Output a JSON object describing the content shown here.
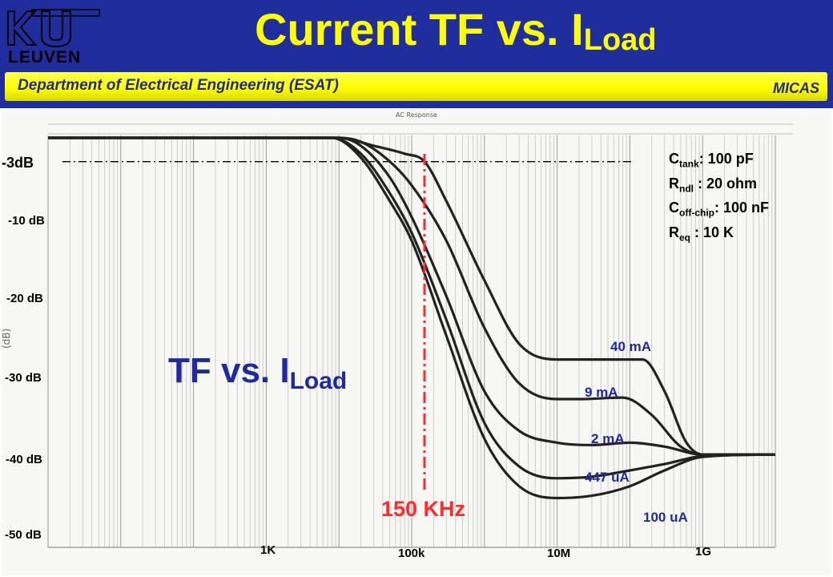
{
  "header": {
    "logo_text": "LEUVEN",
    "title_main": "Current TF vs. I",
    "title_sub": "Load",
    "department": "Department of Electrical Engineering (ESAT)",
    "group": "MICAS"
  },
  "annotations": {
    "tf_main": "TF vs. I",
    "tf_sub": "Load",
    "freq_marker": "150 KHz",
    "params": [
      {
        "name": "C",
        "sub": "tank",
        "value": ": 100 pF"
      },
      {
        "name": "R",
        "sub": "ndl",
        "value": " : 20 ohm"
      },
      {
        "name": "C",
        "sub": "off-chip",
        "value": ": 100 nF"
      },
      {
        "name": "R",
        "sub": "eq",
        "value": " : 10 K"
      }
    ]
  },
  "colors": {
    "header_bg": "#1f2e9c",
    "title": "#ffff00",
    "band": "#ffff00",
    "curve_label": "#1e2aa0",
    "marker": "#ff2a2a",
    "curve": "#222222"
  },
  "chart_data": {
    "type": "line",
    "x_scale": "log",
    "xlim": [
      1,
      10000000000
    ],
    "ylim": [
      -52,
      2
    ],
    "ylabel": "(dB)",
    "y_tick_labels": [
      {
        "label": "-3dB",
        "value": -3
      },
      {
        "label": "-10 dB",
        "value": -10
      },
      {
        "label": "-20 dB",
        "value": -20
      },
      {
        "label": "-30 dB",
        "value": -30
      },
      {
        "label": "-40 dB",
        "value": -40
      },
      {
        "label": "-50 dB",
        "value": -50
      }
    ],
    "x_tick_labels": [
      {
        "label": "1K",
        "value": 1000
      },
      {
        "label": "100k",
        "value": 100000
      },
      {
        "label": "10M",
        "value": 10000000
      },
      {
        "label": "1G",
        "value": 1000000000
      }
    ],
    "reference_line": {
      "value": -3
    },
    "marker_line": {
      "value": 150000
    },
    "series": [
      {
        "name": "40 mA",
        "points": [
          [
            1,
            0
          ],
          [
            10000,
            0
          ],
          [
            30000,
            -1
          ],
          [
            80000,
            -2
          ],
          [
            150000,
            -3
          ],
          [
            300000,
            -8
          ],
          [
            1000000,
            -18
          ],
          [
            3000000,
            -26
          ],
          [
            10000000,
            -28
          ],
          [
            30000000,
            -28
          ],
          [
            150000000,
            -28
          ],
          [
            300000000,
            -32
          ],
          [
            600000000,
            -38.5
          ],
          [
            1000000000,
            -40
          ],
          [
            10000000000,
            -40
          ]
        ]
      },
      {
        "name": "9 mA",
        "points": [
          [
            1,
            0
          ],
          [
            10000,
            0
          ],
          [
            20000,
            -0.5
          ],
          [
            50000,
            -3
          ],
          [
            100000,
            -6
          ],
          [
            300000,
            -13
          ],
          [
            1000000,
            -24
          ],
          [
            3000000,
            -31
          ],
          [
            10000000,
            -33
          ],
          [
            20000000,
            -33
          ],
          [
            80000000,
            -32.8
          ],
          [
            200000000,
            -35
          ],
          [
            500000000,
            -39
          ],
          [
            1000000000,
            -40
          ],
          [
            10000000000,
            -40
          ]
        ]
      },
      {
        "name": "2 mA",
        "points": [
          [
            1,
            0
          ],
          [
            10000,
            0
          ],
          [
            20000,
            -1
          ],
          [
            50000,
            -5
          ],
          [
            100000,
            -10
          ],
          [
            300000,
            -20
          ],
          [
            1000000,
            -32
          ],
          [
            3000000,
            -37
          ],
          [
            10000000,
            -38.5
          ],
          [
            30000000,
            -38.8
          ],
          [
            100000000,
            -38.5
          ],
          [
            300000000,
            -39
          ],
          [
            1000000000,
            -40
          ],
          [
            10000000000,
            -40
          ]
        ]
      },
      {
        "name": "447 uA",
        "points": [
          [
            1,
            0
          ],
          [
            8000,
            0
          ],
          [
            20000,
            -2
          ],
          [
            50000,
            -7
          ],
          [
            100000,
            -12
          ],
          [
            300000,
            -23
          ],
          [
            1000000,
            -36
          ],
          [
            3000000,
            -41.5
          ],
          [
            10000000,
            -43
          ],
          [
            30000000,
            -42.8
          ],
          [
            100000000,
            -42
          ],
          [
            300000000,
            -41.2
          ],
          [
            1000000000,
            -40.2
          ],
          [
            10000000000,
            -40
          ]
        ]
      },
      {
        "name": "100 uA",
        "points": [
          [
            1,
            0
          ],
          [
            8000,
            0
          ],
          [
            20000,
            -2.5
          ],
          [
            50000,
            -8
          ],
          [
            100000,
            -13
          ],
          [
            300000,
            -25
          ],
          [
            1000000,
            -38
          ],
          [
            3000000,
            -44
          ],
          [
            10000000,
            -45.5
          ],
          [
            30000000,
            -45.2
          ],
          [
            100000000,
            -44
          ],
          [
            300000000,
            -42
          ],
          [
            1000000000,
            -40.3
          ],
          [
            10000000000,
            -40
          ]
        ]
      }
    ]
  }
}
